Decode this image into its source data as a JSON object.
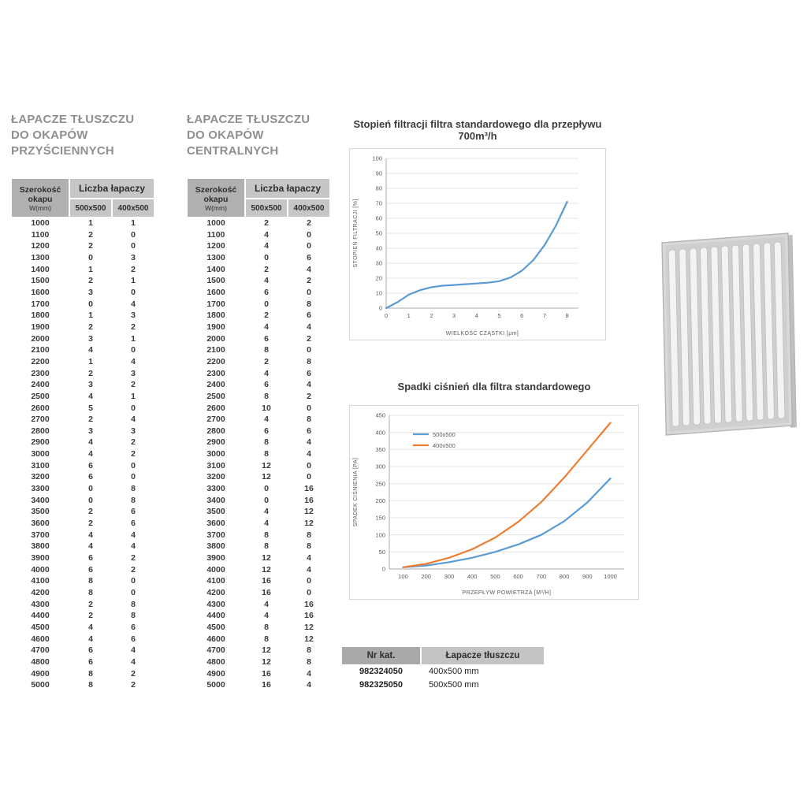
{
  "wall_hoods_section": {
    "title_line1": "ŁAPACZE TŁUSZCZU",
    "title_line2": "DO OKAPÓW",
    "title_line3": "PRZYŚCIENNYCH",
    "header": {
      "col1_title": "Szerokość okapu",
      "col1_sub": "W(mm)",
      "group_title": "Liczba łapaczy",
      "col2_title": "500x500",
      "col3_title": "400x500"
    },
    "rows": [
      [
        1000,
        1,
        1
      ],
      [
        1100,
        2,
        0
      ],
      [
        1200,
        2,
        0
      ],
      [
        1300,
        0,
        3
      ],
      [
        1400,
        1,
        2
      ],
      [
        1500,
        2,
        1
      ],
      [
        1600,
        3,
        0
      ],
      [
        1700,
        0,
        4
      ],
      [
        1800,
        1,
        3
      ],
      [
        1900,
        2,
        2
      ],
      [
        2000,
        3,
        1
      ],
      [
        2100,
        4,
        0
      ],
      [
        2200,
        1,
        4
      ],
      [
        2300,
        2,
        3
      ],
      [
        2400,
        3,
        2
      ],
      [
        2500,
        4,
        1
      ],
      [
        2600,
        5,
        0
      ],
      [
        2700,
        2,
        4
      ],
      [
        2800,
        3,
        3
      ],
      [
        2900,
        4,
        2
      ],
      [
        3000,
        4,
        2
      ],
      [
        3100,
        6,
        0
      ],
      [
        3200,
        6,
        0
      ],
      [
        3300,
        0,
        8
      ],
      [
        3400,
        0,
        8
      ],
      [
        3500,
        2,
        6
      ],
      [
        3600,
        2,
        6
      ],
      [
        3700,
        4,
        4
      ],
      [
        3800,
        4,
        4
      ],
      [
        3900,
        6,
        2
      ],
      [
        4000,
        6,
        2
      ],
      [
        4100,
        8,
        0
      ],
      [
        4200,
        8,
        0
      ],
      [
        4300,
        2,
        8
      ],
      [
        4400,
        2,
        8
      ],
      [
        4500,
        4,
        6
      ],
      [
        4600,
        4,
        6
      ],
      [
        4700,
        6,
        4
      ],
      [
        4800,
        6,
        4
      ],
      [
        4900,
        8,
        2
      ],
      [
        5000,
        8,
        2
      ]
    ]
  },
  "central_hoods_section": {
    "title_line1": "ŁAPACZE TŁUSZCZU",
    "title_line2": "DO OKAPÓW",
    "title_line3": "CENTRALNYCH",
    "header": {
      "col1_title": "Szerokość okapu",
      "col1_sub": "W(mm)",
      "group_title": "Liczba łapaczy",
      "col2_title": "500x500",
      "col3_title": "400x500"
    },
    "rows": [
      [
        1000,
        2,
        2
      ],
      [
        1100,
        4,
        0
      ],
      [
        1200,
        4,
        0
      ],
      [
        1300,
        0,
        6
      ],
      [
        1400,
        2,
        4
      ],
      [
        1500,
        4,
        2
      ],
      [
        1600,
        6,
        0
      ],
      [
        1700,
        0,
        8
      ],
      [
        1800,
        2,
        6
      ],
      [
        1900,
        4,
        4
      ],
      [
        2000,
        6,
        2
      ],
      [
        2100,
        8,
        0
      ],
      [
        2200,
        2,
        8
      ],
      [
        2300,
        4,
        6
      ],
      [
        2400,
        6,
        4
      ],
      [
        2500,
        8,
        2
      ],
      [
        2600,
        10,
        0
      ],
      [
        2700,
        4,
        8
      ],
      [
        2800,
        6,
        6
      ],
      [
        2900,
        8,
        4
      ],
      [
        3000,
        8,
        4
      ],
      [
        3100,
        12,
        0
      ],
      [
        3200,
        12,
        0
      ],
      [
        3300,
        0,
        16
      ],
      [
        3400,
        0,
        16
      ],
      [
        3500,
        4,
        12
      ],
      [
        3600,
        4,
        12
      ],
      [
        3700,
        8,
        8
      ],
      [
        3800,
        8,
        8
      ],
      [
        3900,
        12,
        4
      ],
      [
        4000,
        12,
        4
      ],
      [
        4100,
        16,
        0
      ],
      [
        4200,
        16,
        0
      ],
      [
        4300,
        4,
        16
      ],
      [
        4400,
        4,
        16
      ],
      [
        4500,
        8,
        12
      ],
      [
        4600,
        8,
        12
      ],
      [
        4700,
        12,
        8
      ],
      [
        4800,
        12,
        8
      ],
      [
        4900,
        16,
        4
      ],
      [
        5000,
        16,
        4
      ]
    ]
  },
  "chart_data": [
    {
      "type": "line",
      "title": "Stopień filtracji filtra standardowego dla przepływu 700m³/h",
      "xlabel": "WIELKOŚĆ CZĄSTKI [μm]",
      "ylabel": "STOPIEŃ FILTRACJI [%]",
      "xlim": [
        0,
        8.5
      ],
      "ylim": [
        0,
        100
      ],
      "xticks": [
        0,
        1,
        2,
        3,
        4,
        5,
        6,
        7,
        8
      ],
      "yticks": [
        0,
        10,
        20,
        30,
        40,
        50,
        60,
        70,
        80,
        90,
        100
      ],
      "grid": "horizontal",
      "legend_position": "",
      "series": [
        {
          "name": "stopień filtracji",
          "color": "#5b9bd5",
          "x": [
            0,
            0.5,
            1,
            1.5,
            2,
            2.5,
            3,
            3.5,
            4,
            4.5,
            5,
            5.5,
            6,
            6.5,
            7,
            7.5,
            8
          ],
          "y": [
            0,
            4,
            9,
            12,
            14,
            15,
            15.5,
            16,
            16.5,
            17,
            18,
            20.5,
            25,
            32,
            42,
            55,
            71
          ]
        }
      ]
    },
    {
      "type": "line",
      "title": "Spadki ciśnień dla filtra standardowego",
      "xlabel": "PRZEPŁYW POWIETRZA [M³/H]",
      "ylabel": "SPADEK CIŚNIENIA [PA]",
      "xlim": [
        40,
        1060
      ],
      "ylim": [
        0,
        450
      ],
      "x": [
        100,
        200,
        300,
        400,
        500,
        600,
        700,
        800,
        900,
        1000
      ],
      "xticks": [
        100,
        200,
        300,
        400,
        500,
        600,
        700,
        800,
        900,
        1000
      ],
      "yticks": [
        0,
        50,
        100,
        150,
        200,
        250,
        300,
        350,
        400,
        450
      ],
      "grid": "horizontal",
      "legend_position": "top-left",
      "series": [
        {
          "name": "500x500",
          "color": "#5b9bd5",
          "y": [
            5,
            10,
            20,
            33,
            50,
            72,
            100,
            140,
            195,
            265
          ]
        },
        {
          "name": "400x500",
          "color": "#ed7d31",
          "y": [
            5,
            15,
            33,
            58,
            92,
            138,
            196,
            268,
            348,
            428
          ]
        }
      ]
    }
  ],
  "catalog_table": {
    "col1_header": "Nr kat.",
    "col2_header": "Łapacze tłuszczu",
    "rows": [
      [
        "982324050",
        "400x500 mm"
      ],
      [
        "982325050",
        "500x500 mm"
      ]
    ]
  }
}
